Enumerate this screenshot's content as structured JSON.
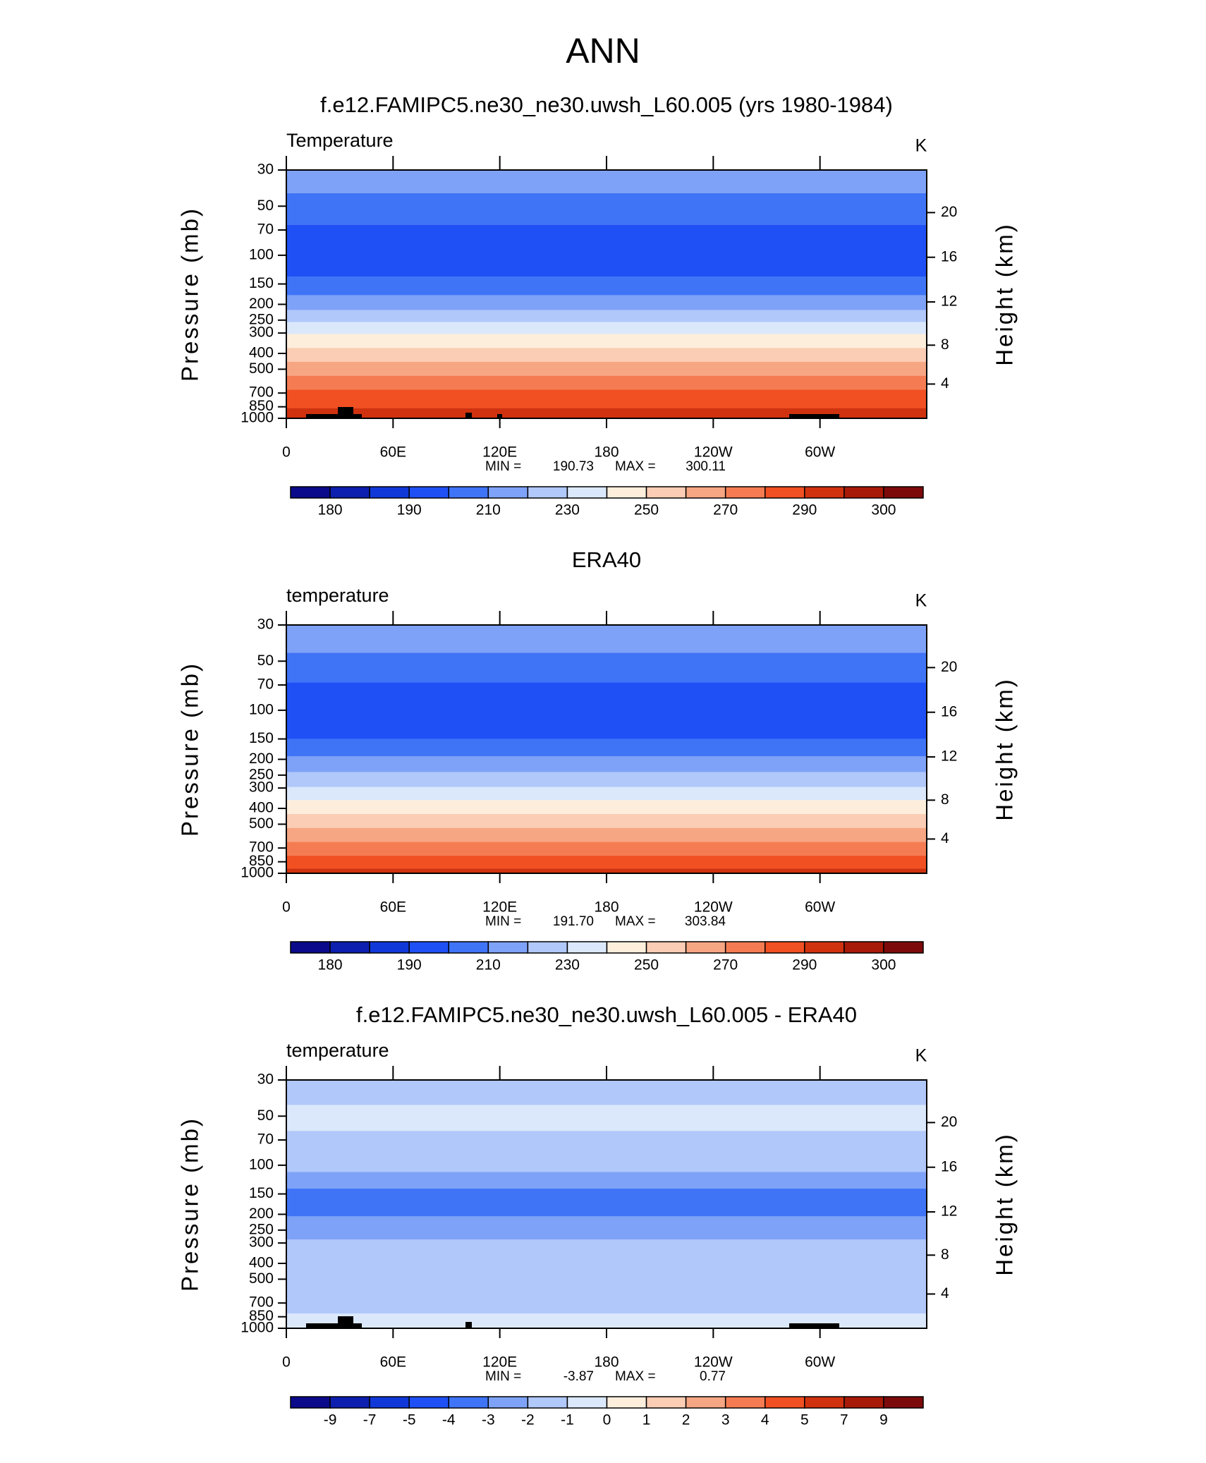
{
  "title": "ANN",
  "chart_data": [
    {
      "type": "contour",
      "title": "f.e12.FAMIPC5.ne30_ne30.uwsh_L60.005 (yrs 1980-1984)",
      "label": "Temperature",
      "units": "K",
      "ylabel": "Pressure (mb)",
      "y2label": "Height (km)",
      "xlim": [
        0,
        360
      ],
      "xticks": [
        0,
        {
          "value": 60,
          "label": "60E"
        },
        {
          "value": 120,
          "label": "120E"
        },
        180,
        {
          "value": 240,
          "label": "120W"
        },
        {
          "value": 300,
          "label": "60W"
        }
      ],
      "ylim": [
        1000,
        30
      ],
      "log_y": true,
      "yticks": [
        30,
        50,
        70,
        100,
        150,
        200,
        250,
        300,
        400,
        500,
        700,
        850,
        1000
      ],
      "y2ticks": [
        4,
        8,
        12,
        16,
        20
      ],
      "min_label": "MIN =",
      "min": 190.73,
      "max_label": "MAX =",
      "max": 300.11,
      "colorbar": {
        "colors": [
          "#0a0a8a",
          "#0c1fae",
          "#1038d8",
          "#1e50f5",
          "#3f74f7",
          "#7ea2f7",
          "#b0c8fa",
          "#dbe8fb",
          "#fdeedc",
          "#fbcdb4",
          "#f7a683",
          "#f57c52",
          "#f15022",
          "#d0320f",
          "#a81a08",
          "#7d0a0a"
        ],
        "ticks": [
          180,
          190,
          210,
          230,
          250,
          270,
          290,
          300
        ]
      },
      "bands": [
        {
          "p_top": 30,
          "p_bottom": 41.6,
          "level": 5
        },
        {
          "p_top": 41.6,
          "p_bottom": 65,
          "level": 4
        },
        {
          "p_top": 65,
          "p_bottom": 135,
          "level": 3
        },
        {
          "p_top": 135,
          "p_bottom": 176,
          "level": 4
        },
        {
          "p_top": 176,
          "p_bottom": 217,
          "level": 5
        },
        {
          "p_top": 217,
          "p_bottom": 257,
          "level": 6
        },
        {
          "p_top": 257,
          "p_bottom": 304,
          "level": 7
        },
        {
          "p_top": 304,
          "p_bottom": 370,
          "level": 8
        },
        {
          "p_top": 370,
          "p_bottom": 450,
          "level": 9
        },
        {
          "p_top": 450,
          "p_bottom": 548,
          "level": 10
        },
        {
          "p_top": 548,
          "p_bottom": 666,
          "level": 11
        },
        {
          "p_top": 666,
          "p_bottom": 866,
          "level": 12
        },
        {
          "p_top": 866,
          "p_bottom": 1000,
          "level": 13
        }
      ]
    },
    {
      "type": "contour",
      "title": "ERA40",
      "label": "temperature",
      "units": "K",
      "ylabel": "Pressure (mb)",
      "y2label": "Height (km)",
      "xlim": [
        0,
        360
      ],
      "xticks": [
        0,
        {
          "value": 60,
          "label": "60E"
        },
        {
          "value": 120,
          "label": "120E"
        },
        180,
        {
          "value": 240,
          "label": "120W"
        },
        {
          "value": 300,
          "label": "60W"
        }
      ],
      "ylim": [
        1000,
        30
      ],
      "log_y": true,
      "yticks": [
        30,
        50,
        70,
        100,
        150,
        200,
        250,
        300,
        400,
        500,
        700,
        850,
        1000
      ],
      "y2ticks": [
        4,
        8,
        12,
        16,
        20
      ],
      "min_label": "MIN =",
      "min": {
        "value": 191.7,
        "label": "191.70"
      },
      "max_label": "MAX =",
      "max": 303.84,
      "colorbar": {
        "colors": [
          "#0a0a8a",
          "#0c1fae",
          "#1038d8",
          "#1e50f5",
          "#3f74f7",
          "#7ea2f7",
          "#b0c8fa",
          "#dbe8fb",
          "#fdeedc",
          "#fbcdb4",
          "#f7a683",
          "#f57c52",
          "#f15022",
          "#d0320f",
          "#a81a08",
          "#7d0a0a"
        ],
        "ticks": [
          180,
          190,
          210,
          230,
          250,
          270,
          290,
          300
        ]
      },
      "bands": [
        {
          "p_top": 30,
          "p_bottom": 44.4,
          "level": 5
        },
        {
          "p_top": 44.4,
          "p_bottom": 67.5,
          "level": 4
        },
        {
          "p_top": 67.5,
          "p_bottom": 150,
          "level": 3
        },
        {
          "p_top": 150,
          "p_bottom": 192,
          "level": 4
        },
        {
          "p_top": 192,
          "p_bottom": 240,
          "level": 5
        },
        {
          "p_top": 240,
          "p_bottom": 296,
          "level": 6
        },
        {
          "p_top": 296,
          "p_bottom": 356,
          "level": 7
        },
        {
          "p_top": 356,
          "p_bottom": 433,
          "level": 8
        },
        {
          "p_top": 433,
          "p_bottom": 527,
          "level": 9
        },
        {
          "p_top": 527,
          "p_bottom": 641,
          "level": 10
        },
        {
          "p_top": 641,
          "p_bottom": 780,
          "level": 11
        },
        {
          "p_top": 780,
          "p_bottom": 937,
          "level": 12
        },
        {
          "p_top": 937,
          "p_bottom": 1000,
          "level": 13
        }
      ]
    },
    {
      "type": "contour",
      "title": "f.e12.FAMIPC5.ne30_ne30.uwsh_L60.005 - ERA40",
      "label": "temperature",
      "units": "K",
      "ylabel": "Pressure (mb)",
      "y2label": "Height (km)",
      "xlim": [
        0,
        360
      ],
      "xticks": [
        0,
        {
          "value": 60,
          "label": "60E"
        },
        {
          "value": 120,
          "label": "120E"
        },
        180,
        {
          "value": 240,
          "label": "120W"
        },
        {
          "value": 300,
          "label": "60W"
        }
      ],
      "ylim": [
        1000,
        30
      ],
      "log_y": true,
      "yticks": [
        30,
        50,
        70,
        100,
        150,
        200,
        250,
        300,
        400,
        500,
        700,
        850,
        1000
      ],
      "y2ticks": [
        4,
        8,
        12,
        16,
        20
      ],
      "min_label": "MIN =",
      "min": -3.87,
      "max_label": "MAX =",
      "max": 0.77,
      "colorbar": {
        "colors": [
          "#0a0a8a",
          "#0c1fae",
          "#1038d8",
          "#1e50f5",
          "#3f74f7",
          "#7ea2f7",
          "#b0c8fa",
          "#dbe8fb",
          "#fdeedc",
          "#fbcdb4",
          "#f7a683",
          "#f57c52",
          "#f15022",
          "#d0320f",
          "#a81a08",
          "#7d0a0a"
        ],
        "ticks": [
          -9,
          -7,
          -5,
          -4,
          -3,
          -2,
          -1,
          0,
          1,
          2,
          3,
          4,
          5,
          7,
          9
        ]
      },
      "bands": [
        {
          "p_top": 30,
          "p_bottom": 42.7,
          "level": 6
        },
        {
          "p_top": 42.7,
          "p_bottom": 61.6,
          "level": 7
        },
        {
          "p_top": 61.6,
          "p_bottom": 110,
          "level": 6
        },
        {
          "p_top": 110,
          "p_bottom": 139,
          "level": 5
        },
        {
          "p_top": 139,
          "p_bottom": 206,
          "level": 4
        },
        {
          "p_top": 206,
          "p_bottom": 285,
          "level": 5
        },
        {
          "p_top": 285,
          "p_bottom": 812,
          "level": 6
        },
        {
          "p_top": 812,
          "p_bottom": 1000,
          "level": 7
        }
      ]
    }
  ]
}
